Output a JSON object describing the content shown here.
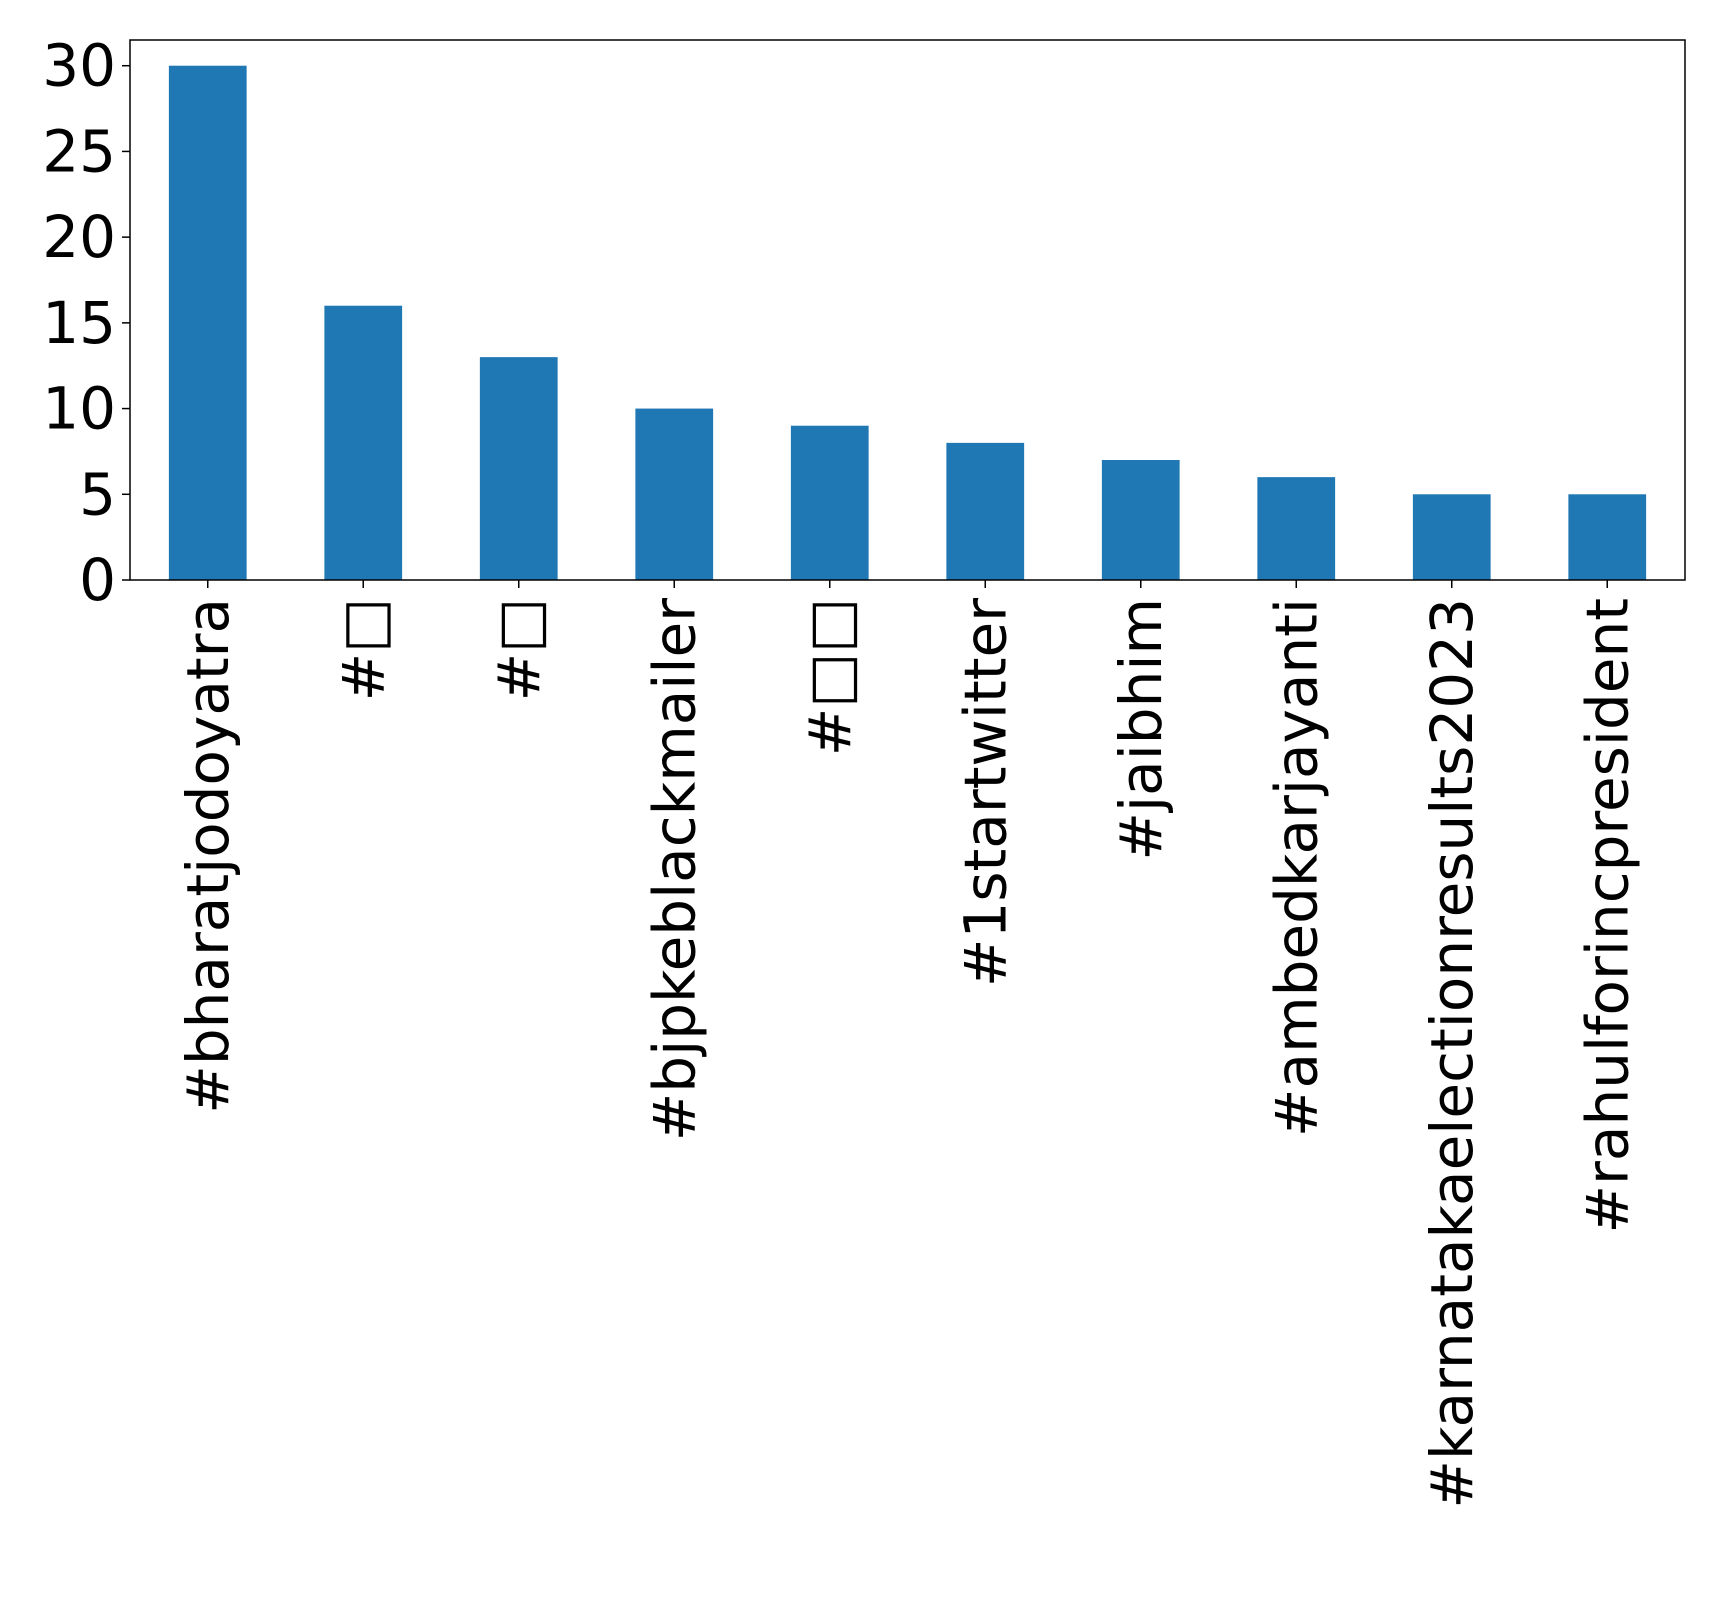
{
  "chart_data": {
    "type": "bar",
    "title": "",
    "xlabel": "",
    "ylabel": "",
    "categories": [
      "#bharatjodoyatra",
      "#□",
      "#□",
      "#bjpkeblackmailer",
      "#□□",
      "#1startwitter",
      "#jaibhim",
      "#ambedkarjayanti",
      "#karnatakaelectionresults2023",
      "#rahulforincpresident"
    ],
    "values": [
      30,
      16,
      13,
      10,
      9,
      8,
      7,
      6,
      5,
      5
    ],
    "ylim": [
      0,
      31.5
    ],
    "yticks": [
      0,
      5,
      10,
      15,
      20,
      25,
      30
    ],
    "bar_color": "#1f77b4",
    "grid": false,
    "legend": "none"
  }
}
